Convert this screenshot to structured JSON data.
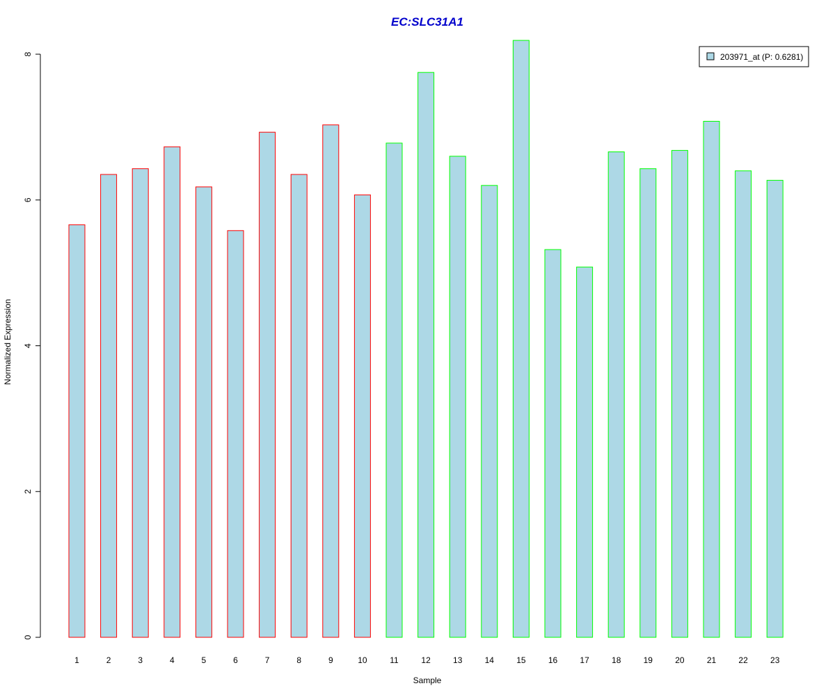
{
  "chart_data": {
    "type": "bar",
    "title": "EC:SLC31A1",
    "xlabel": "Sample",
    "ylabel": "Normalized Expression",
    "categories": [
      "1",
      "2",
      "3",
      "4",
      "5",
      "6",
      "7",
      "8",
      "9",
      "10",
      "11",
      "12",
      "13",
      "14",
      "15",
      "16",
      "17",
      "18",
      "19",
      "20",
      "21",
      "22",
      "23"
    ],
    "series": [
      {
        "name": "203971_at (P: 0.6281)",
        "values": [
          5.66,
          6.35,
          6.43,
          6.73,
          6.18,
          5.58,
          6.93,
          6.35,
          7.03,
          6.07,
          6.78,
          7.75,
          6.6,
          6.2,
          8.19,
          5.32,
          5.08,
          6.66,
          6.43,
          6.68,
          7.08,
          6.4,
          6.27
        ],
        "fill": "#add8e6",
        "border_colors": [
          "#ff0000",
          "#ff0000",
          "#ff0000",
          "#ff0000",
          "#ff0000",
          "#ff0000",
          "#ff0000",
          "#ff0000",
          "#ff0000",
          "#ff0000",
          "#00ff00",
          "#00ff00",
          "#00ff00",
          "#00ff00",
          "#00ff00",
          "#00ff00",
          "#00ff00",
          "#00ff00",
          "#00ff00",
          "#00ff00",
          "#00ff00",
          "#00ff00",
          "#00ff00"
        ]
      }
    ],
    "yticks": [
      0,
      2,
      4,
      6,
      8
    ],
    "ylim": [
      0,
      8.19
    ],
    "grid": false,
    "legend_position": "top-right",
    "title_color": "#0000cc"
  }
}
